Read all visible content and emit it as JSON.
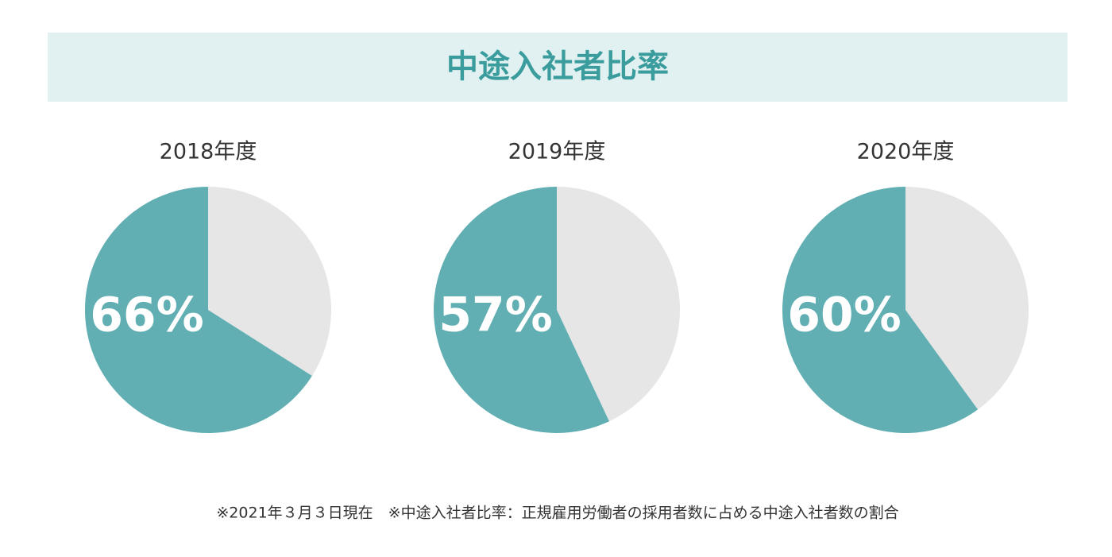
{
  "title": "中途入社者比率",
  "note": "※2021年３月３日現在　※中途入社者比率：正規雇用労働者の採用者数に占める中途入社者数の割合",
  "chart_data": [
    {
      "type": "pie",
      "title": "2018年度",
      "values": [
        66,
        34
      ],
      "value_labels": [
        "66%",
        null
      ],
      "colors": [
        "#62afb3",
        "#e6e6e6"
      ]
    },
    {
      "type": "pie",
      "title": "2019年度",
      "values": [
        57,
        43
      ],
      "value_labels": [
        "57%",
        null
      ],
      "colors": [
        "#62afb3",
        "#e6e6e6"
      ]
    },
    {
      "type": "pie",
      "title": "2020年度",
      "values": [
        60,
        40
      ],
      "value_labels": [
        "60%",
        null
      ],
      "colors": [
        "#62afb3",
        "#e6e6e6"
      ]
    }
  ]
}
